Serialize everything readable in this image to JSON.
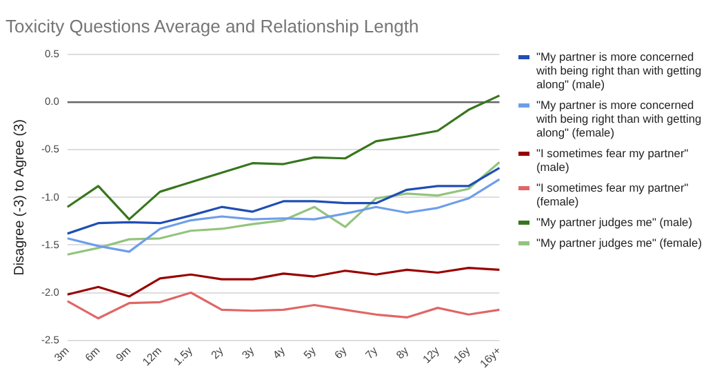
{
  "chart_data": {
    "type": "line",
    "title": "Toxicity Questions Average and Relationship Length",
    "ylabel": "Disagree (-3) to Agree (3)",
    "categories": [
      "3m",
      "6m",
      "9m",
      "12m",
      "1.5y",
      "2y",
      "3y",
      "4y",
      "5y",
      "6y",
      "7y",
      "8y",
      "12y",
      "16y",
      "16y+"
    ],
    "series": [
      {
        "name": "\"My partner is more concerned with being right than with getting along\" (male)",
        "color": "#1f4eb4",
        "values": [
          -1.38,
          -1.27,
          -1.26,
          -1.27,
          -1.19,
          -1.1,
          -1.15,
          -1.04,
          -1.04,
          -1.06,
          -1.06,
          -0.92,
          -0.88,
          -0.88,
          -0.69
        ]
      },
      {
        "name": "\"My partner is more concerned with being right than with getting along\" (female)",
        "color": "#6d9eeb",
        "values": [
          -1.43,
          -1.51,
          -1.57,
          -1.33,
          -1.24,
          -1.2,
          -1.23,
          -1.22,
          -1.23,
          -1.17,
          -1.1,
          -1.16,
          -1.11,
          -1.01,
          -0.81
        ]
      },
      {
        "name": "\"I sometimes fear my partner\" (male)",
        "color": "#990000",
        "values": [
          -2.02,
          -1.94,
          -2.04,
          -1.85,
          -1.81,
          -1.86,
          -1.86,
          -1.8,
          -1.83,
          -1.77,
          -1.81,
          -1.76,
          -1.79,
          -1.74,
          -1.76
        ]
      },
      {
        "name": "\"I sometimes fear my partner\" (female)",
        "color": "#e06666",
        "values": [
          -2.09,
          -2.27,
          -2.11,
          -2.1,
          -2.0,
          -2.18,
          -2.19,
          -2.18,
          -2.13,
          -2.18,
          -2.23,
          -2.26,
          -2.16,
          -2.23,
          -2.18
        ]
      },
      {
        "name": "\"My partner judges me\" (male)",
        "color": "#38761d",
        "values": [
          -1.1,
          -0.88,
          -1.23,
          -0.94,
          -0.84,
          -0.74,
          -0.64,
          -0.65,
          -0.58,
          -0.59,
          -0.41,
          -0.36,
          -0.3,
          -0.08,
          0.07
        ]
      },
      {
        "name": "\"My partner judges me\" (female)",
        "color": "#93c47d",
        "values": [
          -1.6,
          -1.53,
          -1.44,
          -1.43,
          -1.35,
          -1.33,
          -1.28,
          -1.24,
          -1.1,
          -1.31,
          -1.01,
          -0.96,
          -0.98,
          -0.91,
          -0.63
        ]
      }
    ],
    "ylim": [
      -2.5,
      0.5
    ],
    "yticks": [
      {
        "value": -2.5,
        "label": "-2.5"
      },
      {
        "value": -2,
        "label": "-2.0"
      },
      {
        "value": -1.5,
        "label": "-1.5"
      },
      {
        "value": -1,
        "label": "-1.0"
      },
      {
        "value": -0.5,
        "label": "-0.5"
      },
      {
        "value": 0,
        "label": "0.0"
      },
      {
        "value": 0.5,
        "label": "0.5"
      }
    ],
    "ref_lines": [
      {
        "axis": "y",
        "value": 0,
        "color": "#666666"
      }
    ],
    "grid": "y",
    "legend": "right",
    "marker": "none",
    "line_style": "solid"
  }
}
